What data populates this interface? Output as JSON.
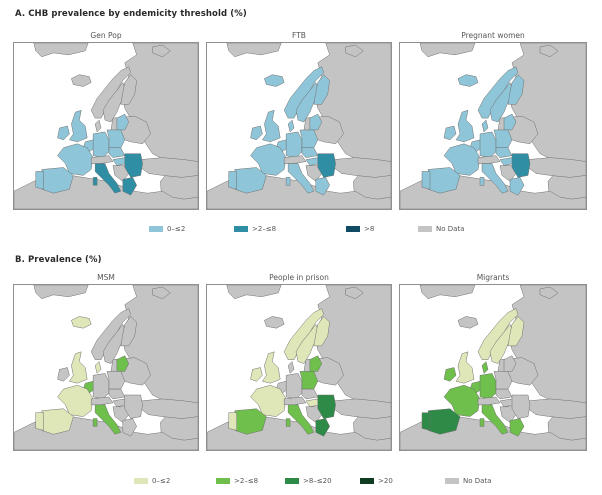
{
  "colors": {
    "no_data": "#c4c4c4",
    "sea": "#ffffff",
    "border": "#6f6f6f",
    "blue_low": "#8ec5d8",
    "blue_mid": "#2f8ea3",
    "blue_high": "#0f4c63",
    "green_low": "#dfe6b8",
    "green_mid": "#6ebf4b",
    "green_high": "#2e8b47",
    "green_top": "#0f3d22"
  },
  "panel_a": {
    "title": "A. CHB prevalence by endemicity threshold (%)",
    "maps": [
      {
        "title": "Gen Pop",
        "fills": {
          "iceland": "no_data",
          "norway": "no_data",
          "sweden": "no_data",
          "finland": "no_data",
          "uk": "blue_low",
          "ireland": "blue_low",
          "france": "blue_low",
          "spain": "blue_low",
          "portugal": "blue_low",
          "germany": "blue_low",
          "poland": "blue_low",
          "benelux": "blue_low",
          "denmark": "no_data",
          "baltics": "blue_low",
          "italy": "blue_mid",
          "greece": "blue_mid",
          "romania_bulgaria": "blue_mid",
          "balkans": "no_data",
          "central": "blue_low",
          "switzerland_austria": "no_data",
          "hungary": "blue_low"
        }
      },
      {
        "title": "FTB",
        "fills": {
          "iceland": "blue_low",
          "norway": "blue_low",
          "sweden": "blue_low",
          "finland": "blue_low",
          "uk": "blue_low",
          "ireland": "blue_low",
          "france": "blue_low",
          "spain": "blue_low",
          "portugal": "blue_low",
          "germany": "blue_low",
          "poland": "blue_low",
          "benelux": "blue_low",
          "denmark": "blue_low",
          "baltics": "blue_low",
          "italy": "blue_low",
          "greece": "blue_low",
          "romania_bulgaria": "blue_mid",
          "balkans": "no_data",
          "central": "blue_low",
          "switzerland_austria": "no_data",
          "hungary": "blue_low"
        }
      },
      {
        "title": "Pregnant women",
        "fills": {
          "iceland": "blue_low",
          "norway": "blue_low",
          "sweden": "blue_low",
          "finland": "blue_low",
          "uk": "blue_low",
          "ireland": "blue_low",
          "france": "blue_low",
          "spain": "blue_low",
          "portugal": "blue_low",
          "germany": "blue_low",
          "poland": "blue_low",
          "benelux": "blue_low",
          "denmark": "blue_low",
          "baltics": "blue_low",
          "italy": "blue_low",
          "greece": "blue_low",
          "romania_bulgaria": "blue_mid",
          "balkans": "no_data",
          "central": "blue_low",
          "switzerland_austria": "no_data",
          "hungary": "blue_low"
        }
      }
    ],
    "legend": [
      {
        "label": "0–≤2",
        "color": "#8ec5d8"
      },
      {
        "label": ">2–≤8",
        "color": "#2f8ea3"
      },
      {
        "label": ">8",
        "color": "#0f4c63"
      },
      {
        "label": "No Data",
        "color": "#c4c4c4"
      }
    ]
  },
  "panel_b": {
    "title": "B. Prevalence (%)",
    "maps": [
      {
        "title": "MSM",
        "fills": {
          "iceland": "green_low",
          "norway": "no_data",
          "sweden": "no_data",
          "finland": "no_data",
          "uk": "green_low",
          "ireland": "no_data",
          "france": "green_low",
          "spain": "green_low",
          "portugal": "green_low",
          "germany": "no_data",
          "poland": "no_data",
          "benelux": "green_mid",
          "denmark": "green_low",
          "baltics": "green_mid",
          "italy": "green_mid",
          "greece": "no_data",
          "romania_bulgaria": "no_data",
          "balkans": "no_data",
          "central": "no_data",
          "switzerland_austria": "no_data",
          "hungary": "no_data"
        }
      },
      {
        "title": "People in prison",
        "fills": {
          "iceland": "no_data",
          "norway": "green_low",
          "sweden": "green_low",
          "finland": "green_low",
          "uk": "green_low",
          "ireland": "green_low",
          "france": "green_low",
          "spain": "green_mid",
          "portugal": "green_low",
          "germany": "no_data",
          "poland": "green_mid",
          "benelux": "no_data",
          "denmark": "no_data",
          "baltics": "green_mid",
          "italy": "green_mid",
          "greece": "green_high",
          "romania_bulgaria": "green_high",
          "balkans": "no_data",
          "central": "no_data",
          "switzerland_austria": "no_data",
          "hungary": "green_low"
        }
      },
      {
        "title": "Migrants",
        "fills": {
          "iceland": "no_data",
          "norway": "green_low",
          "sweden": "green_low",
          "finland": "green_low",
          "uk": "green_low",
          "ireland": "green_mid",
          "france": "green_mid",
          "spain": "green_high",
          "portugal": "green_high",
          "germany": "green_mid",
          "poland": "no_data",
          "benelux": "green_mid",
          "denmark": "green_mid",
          "baltics": "no_data",
          "italy": "green_mid",
          "greece": "green_mid",
          "romania_bulgaria": "no_data",
          "balkans": "no_data",
          "central": "no_data",
          "switzerland_austria": "no_data",
          "hungary": "no_data"
        }
      }
    ],
    "legend": [
      {
        "label": "0–≤2",
        "color": "#dfe6b8"
      },
      {
        "label": ">2–≤8",
        "color": "#6ebf4b"
      },
      {
        "label": ">8–≤20",
        "color": "#2e8b47"
      },
      {
        "label": ">20",
        "color": "#0f3d22"
      },
      {
        "label": "No Data",
        "color": "#c4c4c4"
      }
    ]
  }
}
